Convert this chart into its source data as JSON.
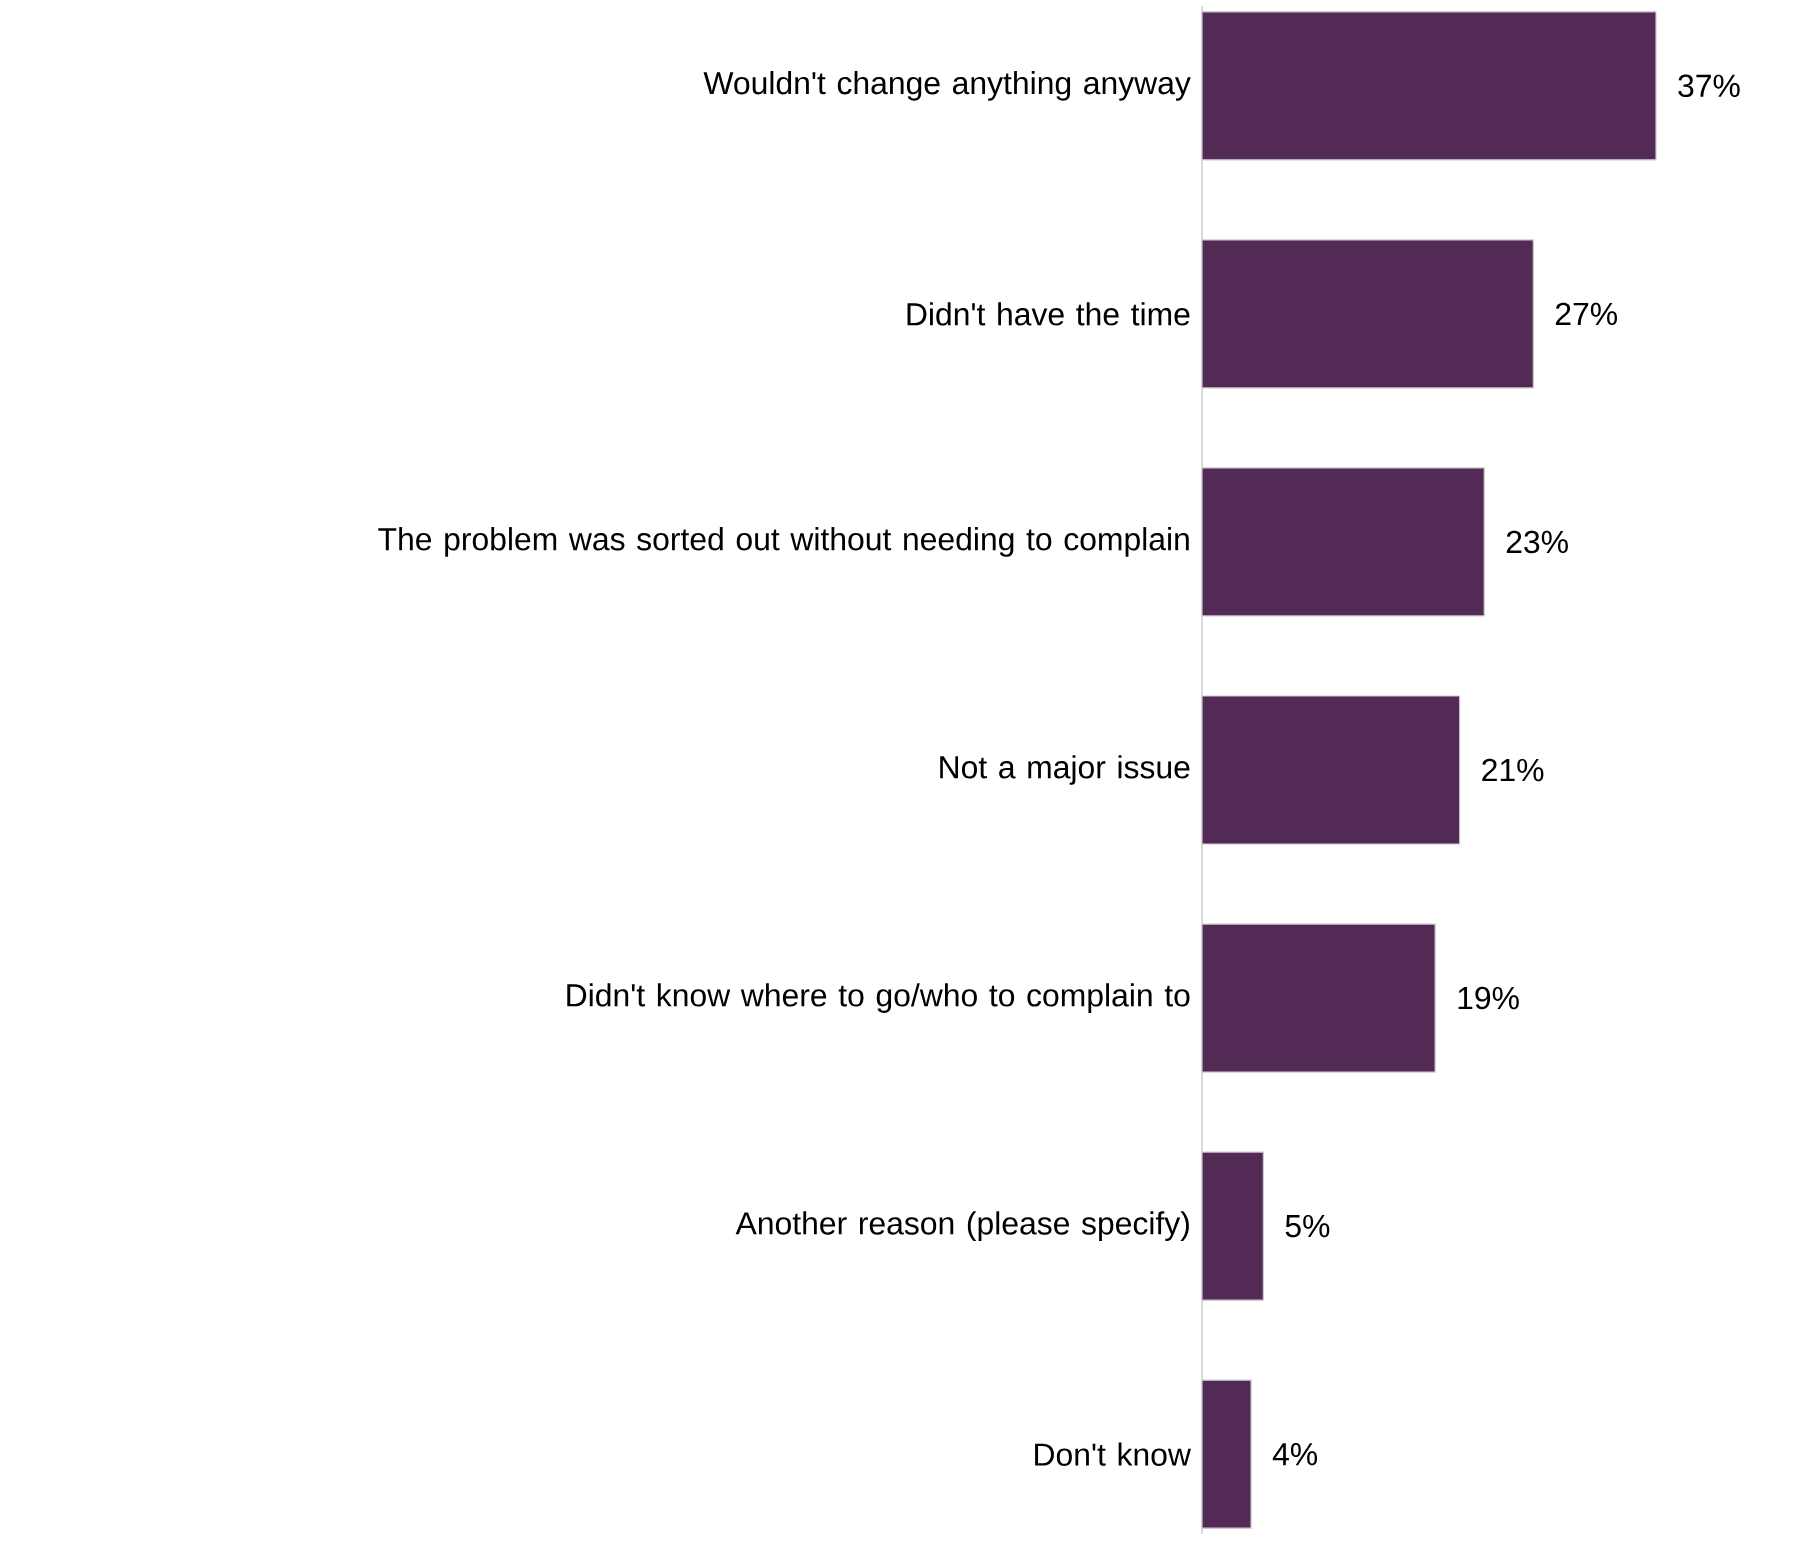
{
  "chart_data": {
    "type": "bar",
    "orientation": "horizontal",
    "categories": [
      "Wouldn't change anything anyway",
      "Didn't have the time",
      "The problem was sorted out without needing to complain",
      "Not a major issue",
      "Didn't know where to go/who to complain to",
      "Another reason (please specify)",
      "Don't know"
    ],
    "values": [
      37,
      27,
      23,
      21,
      19,
      5,
      4
    ],
    "value_labels": [
      "37%",
      "27%",
      "23%",
      "21%",
      "19%",
      "5%",
      "4%"
    ],
    "color": "#532a55"
  }
}
